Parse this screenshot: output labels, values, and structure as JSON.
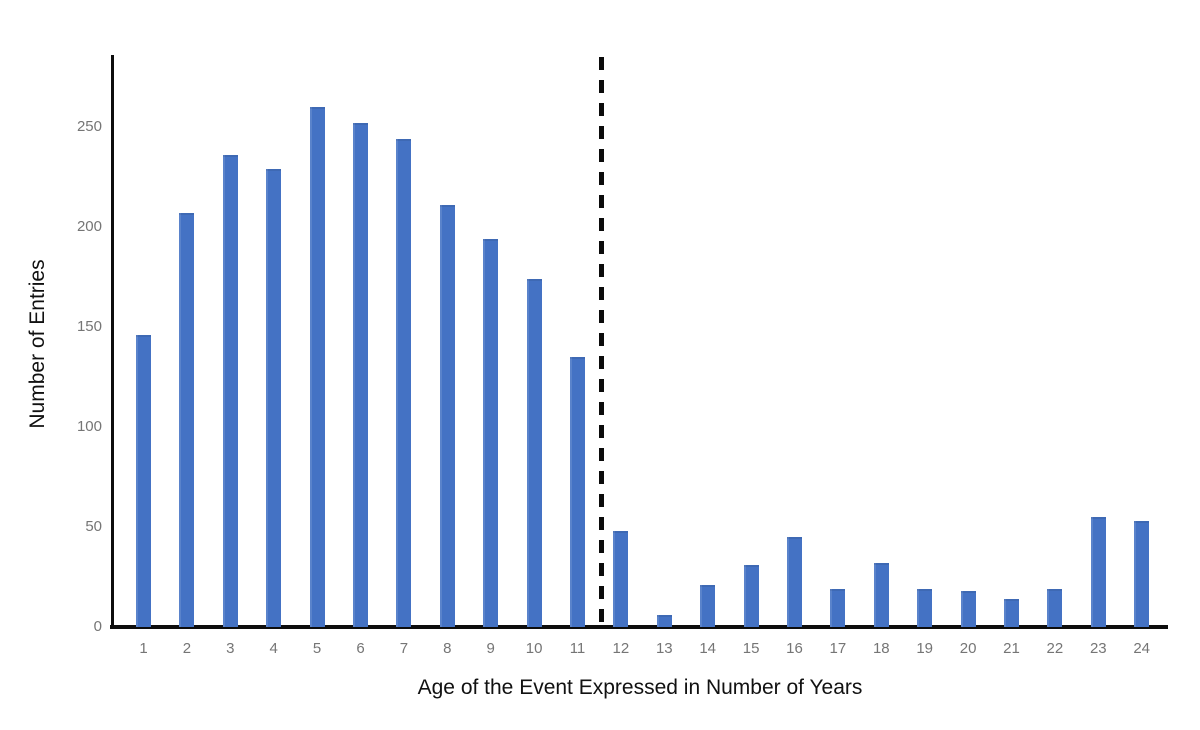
{
  "chart_data": {
    "type": "bar",
    "title": "",
    "xlabel": "Age of the Event Expressed in Number of Years",
    "ylabel": "Number of Entries",
    "categories": [
      1,
      2,
      3,
      4,
      5,
      6,
      7,
      8,
      9,
      10,
      11,
      12,
      13,
      14,
      15,
      16,
      17,
      18,
      19,
      20,
      21,
      22,
      23,
      24
    ],
    "values": [
      146,
      207,
      236,
      229,
      260,
      252,
      244,
      211,
      194,
      174,
      135,
      48,
      6,
      21,
      31,
      45,
      19,
      32,
      19,
      18,
      14,
      19,
      55,
      53
    ],
    "yticks": [
      0,
      50,
      100,
      150,
      200,
      250
    ],
    "ylim": [
      0,
      285
    ],
    "xlim_categories": [
      1,
      24
    ],
    "grid": false,
    "legend": false,
    "bar_color": "#4472C4",
    "axis_color": "#0d0d0d",
    "tick_label_color": "#757575",
    "annotations": [
      {
        "type": "vline",
        "x": 11.5,
        "style": "dashed",
        "color": "#000000"
      }
    ]
  }
}
